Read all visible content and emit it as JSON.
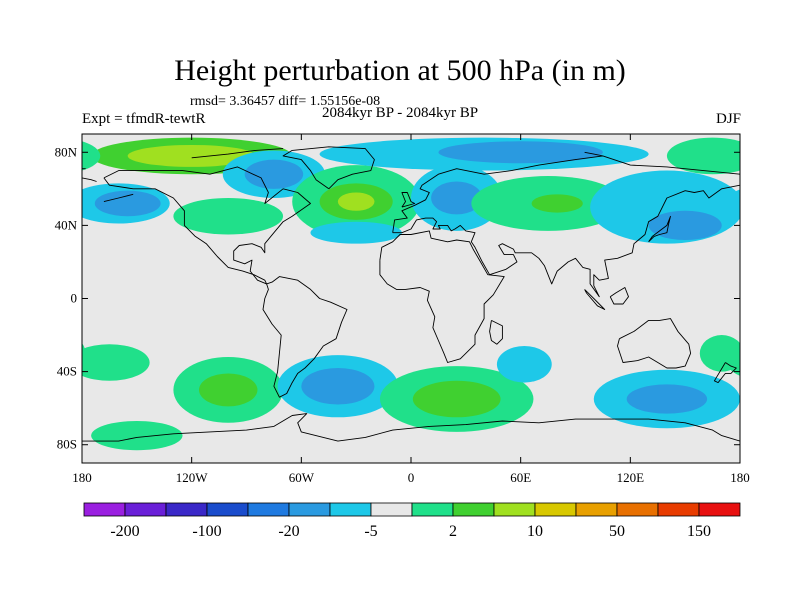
{
  "title": "Height perturbation at 500 hPa (in m)",
  "stats": "rmsd= 3.36457 diff= 1.55156e-08",
  "experiment": "Expt = tfmdR-tewtR",
  "period": "2084kyr BP - 2084kyr BP",
  "season": "DJF",
  "map": {
    "lon_range": [
      -180,
      180
    ],
    "lat_range": [
      -90,
      90
    ],
    "background_color": "#e8e8e8",
    "x_ticks": [
      "180",
      "120W",
      "60W",
      "0",
      "60E",
      "120E",
      "180"
    ],
    "y_ticks": [
      "80N",
      "40N",
      "0",
      "40S",
      "80S"
    ]
  },
  "colorbar": {
    "colors": [
      "#9a1fe0",
      "#6a1fd8",
      "#3a28c8",
      "#1a4ccc",
      "#1f7ae0",
      "#2a9ae0",
      "#1ec8e8",
      "#e8e8e8",
      "#20e08a",
      "#40d030",
      "#a0e020",
      "#d8c800",
      "#e8a000",
      "#e87000",
      "#e83c00",
      "#e81010"
    ],
    "labels": [
      "-200",
      "-100",
      "-20",
      "-5",
      "2",
      "10",
      "50",
      "150"
    ]
  },
  "field_patches": [
    {
      "lon": -120,
      "lat": 78,
      "rlon": 55,
      "rlat": 10,
      "level": 9
    },
    {
      "lon": -120,
      "lat": 78,
      "rlon": 35,
      "rlat": 6,
      "level": 10
    },
    {
      "lon": -75,
      "lat": 68,
      "rlon": 28,
      "rlat": 13,
      "level": 6
    },
    {
      "lon": -75,
      "lat": 68,
      "rlon": 16,
      "rlat": 8,
      "level": 5
    },
    {
      "lon": -160,
      "lat": 52,
      "rlon": 28,
      "rlat": 11,
      "level": 6
    },
    {
      "lon": -155,
      "lat": 52,
      "rlon": 18,
      "rlat": 7,
      "level": 5
    },
    {
      "lon": -100,
      "lat": 45,
      "rlon": 30,
      "rlat": 10,
      "level": 8
    },
    {
      "lon": -30,
      "lat": 53,
      "rlon": 35,
      "rlat": 20,
      "level": 8
    },
    {
      "lon": -30,
      "lat": 53,
      "rlon": 20,
      "rlat": 10,
      "level": 9
    },
    {
      "lon": -30,
      "lat": 53,
      "rlon": 10,
      "rlat": 5,
      "level": 10
    },
    {
      "lon": -30,
      "lat": 36,
      "rlon": 25,
      "rlat": 6,
      "level": 6
    },
    {
      "lon": 40,
      "lat": 79,
      "rlon": 90,
      "rlat": 9,
      "level": 6
    },
    {
      "lon": 60,
      "lat": 80,
      "rlon": 45,
      "rlat": 6,
      "level": 5
    },
    {
      "lon": 25,
      "lat": 55,
      "rlon": 25,
      "rlat": 18,
      "level": 6
    },
    {
      "lon": 25,
      "lat": 55,
      "rlon": 14,
      "rlat": 9,
      "level": 5
    },
    {
      "lon": 75,
      "lat": 52,
      "rlon": 42,
      "rlat": 15,
      "level": 8
    },
    {
      "lon": 80,
      "lat": 52,
      "rlon": 14,
      "rlat": 5,
      "level": 9
    },
    {
      "lon": 140,
      "lat": 50,
      "rlon": 42,
      "rlat": 20,
      "level": 6
    },
    {
      "lon": 150,
      "lat": 40,
      "rlon": 20,
      "rlat": 8,
      "level": 5
    },
    {
      "lon": 165,
      "lat": 78,
      "rlon": 25,
      "rlat": 10,
      "level": 8
    },
    {
      "lon": -165,
      "lat": -35,
      "rlon": 22,
      "rlat": 10,
      "level": 8
    },
    {
      "lon": -100,
      "lat": -50,
      "rlon": 30,
      "rlat": 18,
      "level": 8
    },
    {
      "lon": -100,
      "lat": -50,
      "rlon": 16,
      "rlat": 9,
      "level": 9
    },
    {
      "lon": -40,
      "lat": -48,
      "rlon": 33,
      "rlat": 17,
      "level": 6
    },
    {
      "lon": -40,
      "lat": -48,
      "rlon": 20,
      "rlat": 10,
      "level": 5
    },
    {
      "lon": 25,
      "lat": -55,
      "rlon": 42,
      "rlat": 18,
      "level": 8
    },
    {
      "lon": 25,
      "lat": -55,
      "rlon": 24,
      "rlat": 10,
      "level": 9
    },
    {
      "lon": 62,
      "lat": -36,
      "rlon": 15,
      "rlat": 10,
      "level": 6
    },
    {
      "lon": 140,
      "lat": -55,
      "rlon": 40,
      "rlat": 16,
      "level": 6
    },
    {
      "lon": 140,
      "lat": -55,
      "rlon": 22,
      "rlat": 8,
      "level": 5
    },
    {
      "lon": -150,
      "lat": -75,
      "rlon": 25,
      "rlat": 8,
      "level": 8
    },
    {
      "lon": 170,
      "lat": -30,
      "rlon": 12,
      "rlat": 10,
      "level": 8
    }
  ],
  "coastlines": [
    [
      [
        -168,
        66
      ],
      [
        -160,
        70
      ],
      [
        -140,
        70
      ],
      [
        -125,
        70
      ],
      [
        -110,
        68
      ],
      [
        -95,
        72
      ],
      [
        -82,
        66
      ],
      [
        -78,
        58
      ],
      [
        -80,
        52
      ],
      [
        -70,
        60
      ],
      [
        -62,
        58
      ],
      [
        -55,
        52
      ],
      [
        -65,
        45
      ],
      [
        -70,
        42
      ],
      [
        -75,
        36
      ],
      [
        -80,
        30
      ],
      [
        -80,
        25
      ],
      [
        -82,
        28
      ],
      [
        -87,
        30
      ],
      [
        -94,
        29
      ],
      [
        -97,
        26
      ],
      [
        -97,
        21
      ],
      [
        -91,
        19
      ],
      [
        -87,
        21
      ],
      [
        -88,
        15
      ],
      [
        -84,
        10
      ],
      [
        -79,
        8
      ],
      [
        -80,
        10
      ],
      [
        -86,
        13
      ],
      [
        -92,
        15
      ],
      [
        -100,
        17
      ],
      [
        -106,
        23
      ],
      [
        -112,
        30
      ],
      [
        -115,
        32
      ],
      [
        -118,
        34
      ],
      [
        -124,
        40
      ],
      [
        -124,
        48
      ],
      [
        -130,
        55
      ],
      [
        -140,
        60
      ],
      [
        -152,
        60
      ],
      [
        -165,
        62
      ],
      [
        -168,
        66
      ]
    ],
    [
      [
        -79,
        8
      ],
      [
        -76,
        9
      ],
      [
        -72,
        12
      ],
      [
        -62,
        10
      ],
      [
        -55,
        5
      ],
      [
        -50,
        0
      ],
      [
        -44,
        -2
      ],
      [
        -35,
        -6
      ],
      [
        -38,
        -13
      ],
      [
        -41,
        -22
      ],
      [
        -48,
        -26
      ],
      [
        -53,
        -33
      ],
      [
        -58,
        -38
      ],
      [
        -62,
        -41
      ],
      [
        -65,
        -46
      ],
      [
        -68,
        -52
      ],
      [
        -72,
        -54
      ],
      [
        -75,
        -48
      ],
      [
        -73,
        -40
      ],
      [
        -72,
        -30
      ],
      [
        -71,
        -20
      ],
      [
        -76,
        -14
      ],
      [
        -81,
        -6
      ],
      [
        -80,
        0
      ],
      [
        -78,
        5
      ],
      [
        -79,
        8
      ]
    ],
    [
      [
        -10,
        36
      ],
      [
        -9,
        43
      ],
      [
        -2,
        44
      ],
      [
        -5,
        48
      ],
      [
        2,
        51
      ],
      [
        8,
        54
      ],
      [
        10,
        58
      ],
      [
        5,
        60
      ],
      [
        6,
        62
      ],
      [
        15,
        68
      ],
      [
        25,
        71
      ],
      [
        40,
        68
      ],
      [
        55,
        70
      ],
      [
        70,
        73
      ],
      [
        90,
        76
      ],
      [
        105,
        78
      ],
      [
        120,
        73
      ],
      [
        140,
        72
      ],
      [
        160,
        70
      ],
      [
        180,
        68
      ]
    ],
    [
      [
        -180,
        66
      ],
      [
        -175,
        65
      ],
      [
        -172,
        64
      ]
    ],
    [
      [
        180,
        62
      ],
      [
        170,
        60
      ],
      [
        163,
        55
      ],
      [
        160,
        59
      ],
      [
        155,
        58
      ],
      [
        150,
        59
      ],
      [
        140,
        55
      ],
      [
        135,
        45
      ],
      [
        130,
        42
      ],
      [
        128,
        35
      ],
      [
        122,
        30
      ],
      [
        121,
        25
      ],
      [
        113,
        22
      ],
      [
        106,
        21
      ],
      [
        108,
        11
      ],
      [
        103,
        10
      ],
      [
        100,
        13
      ],
      [
        100,
        7
      ],
      [
        103,
        1
      ],
      [
        98,
        8
      ],
      [
        98,
        16
      ],
      [
        94,
        17
      ],
      [
        90,
        22
      ],
      [
        86,
        20
      ],
      [
        80,
        15
      ],
      [
        77,
        8
      ],
      [
        73,
        18
      ],
      [
        70,
        22
      ],
      [
        66,
        25
      ],
      [
        57,
        25
      ],
      [
        56,
        27
      ],
      [
        50,
        30
      ],
      [
        48,
        29
      ],
      [
        51,
        24
      ],
      [
        56,
        24
      ],
      [
        58,
        20
      ],
      [
        52,
        16
      ],
      [
        43,
        13
      ],
      [
        39,
        20
      ],
      [
        35,
        28
      ],
      [
        33,
        31
      ],
      [
        35,
        36
      ],
      [
        30,
        37
      ],
      [
        27,
        40
      ],
      [
        24,
        38
      ],
      [
        22,
        37
      ],
      [
        20,
        40
      ],
      [
        15,
        40
      ],
      [
        16,
        38
      ],
      [
        12,
        38
      ],
      [
        14,
        42
      ],
      [
        12,
        44
      ],
      [
        8,
        44
      ],
      [
        3,
        43
      ],
      [
        0,
        38
      ],
      [
        -5,
        36
      ],
      [
        -10,
        36
      ]
    ],
    [
      [
        -17,
        21
      ],
      [
        -16,
        28
      ],
      [
        -10,
        31
      ],
      [
        -6,
        35
      ],
      [
        0,
        35
      ],
      [
        10,
        37
      ],
      [
        11,
        33
      ],
      [
        20,
        31
      ],
      [
        25,
        32
      ],
      [
        32,
        31
      ],
      [
        34,
        27
      ],
      [
        38,
        20
      ],
      [
        42,
        13
      ],
      [
        51,
        12
      ],
      [
        45,
        2
      ],
      [
        40,
        -3
      ],
      [
        40,
        -11
      ],
      [
        35,
        -20
      ],
      [
        35,
        -25
      ],
      [
        32,
        -28
      ],
      [
        27,
        -33
      ],
      [
        20,
        -35
      ],
      [
        18,
        -30
      ],
      [
        15,
        -23
      ],
      [
        12,
        -16
      ],
      [
        13,
        -10
      ],
      [
        9,
        -1
      ],
      [
        10,
        4
      ],
      [
        5,
        6
      ],
      [
        -3,
        5
      ],
      [
        -8,
        5
      ],
      [
        -13,
        8
      ],
      [
        -17,
        13
      ],
      [
        -17,
        21
      ]
    ],
    [
      [
        44,
        -12
      ],
      [
        50,
        -15
      ],
      [
        50,
        -22
      ],
      [
        47,
        -25
      ],
      [
        44,
        -23
      ],
      [
        43,
        -18
      ],
      [
        44,
        -12
      ]
    ],
    [
      [
        114,
        -22
      ],
      [
        122,
        -18
      ],
      [
        130,
        -12
      ],
      [
        136,
        -12
      ],
      [
        142,
        -11
      ],
      [
        146,
        -18
      ],
      [
        152,
        -25
      ],
      [
        153,
        -30
      ],
      [
        150,
        -37
      ],
      [
        145,
        -38
      ],
      [
        140,
        -38
      ],
      [
        135,
        -35
      ],
      [
        130,
        -32
      ],
      [
        124,
        -34
      ],
      [
        116,
        -35
      ],
      [
        113,
        -26
      ],
      [
        114,
        -22
      ]
    ],
    [
      [
        -45,
        60
      ],
      [
        -52,
        65
      ],
      [
        -55,
        70
      ],
      [
        -60,
        76
      ],
      [
        -70,
        78
      ],
      [
        -65,
        81
      ],
      [
        -45,
        83
      ],
      [
        -25,
        82
      ],
      [
        -20,
        76
      ],
      [
        -22,
        70
      ],
      [
        -32,
        68
      ],
      [
        -40,
        65
      ],
      [
        -45,
        60
      ]
    ],
    [
      [
        -5,
        50
      ],
      [
        -3,
        53
      ],
      [
        -5,
        58
      ],
      [
        -2,
        58
      ],
      [
        0,
        53
      ],
      [
        2,
        52
      ],
      [
        -5,
        50
      ]
    ],
    [
      [
        130,
        31
      ],
      [
        133,
        34
      ],
      [
        136,
        35
      ],
      [
        140,
        36
      ],
      [
        141,
        41
      ],
      [
        142,
        45
      ],
      [
        140,
        40
      ],
      [
        136,
        37
      ],
      [
        132,
        34
      ],
      [
        130,
        31
      ]
    ],
    [
      [
        95,
        5
      ],
      [
        100,
        0
      ],
      [
        106,
        -6
      ],
      [
        102,
        -4
      ],
      [
        96,
        3
      ],
      [
        95,
        5
      ]
    ],
    [
      [
        109,
        1
      ],
      [
        112,
        3
      ],
      [
        117,
        6
      ],
      [
        119,
        1
      ],
      [
        116,
        -3
      ],
      [
        111,
        -3
      ],
      [
        109,
        1
      ]
    ],
    [
      [
        -180,
        -78
      ],
      [
        -160,
        -78
      ],
      [
        -150,
        -76
      ],
      [
        -130,
        -74
      ],
      [
        -110,
        -73
      ],
      [
        -90,
        -72
      ],
      [
        -75,
        -70
      ],
      [
        -65,
        -64
      ],
      [
        -57,
        -63
      ],
      [
        -62,
        -68
      ],
      [
        -60,
        -73
      ],
      [
        -40,
        -78
      ],
      [
        -25,
        -76
      ],
      [
        -10,
        -72
      ],
      [
        10,
        -70
      ],
      [
        30,
        -69
      ],
      [
        50,
        -67
      ],
      [
        70,
        -68
      ],
      [
        90,
        -66
      ],
      [
        110,
        -66
      ],
      [
        130,
        -66
      ],
      [
        150,
        -68
      ],
      [
        165,
        -72
      ],
      [
        170,
        -75
      ],
      [
        180,
        -78
      ]
    ],
    [
      [
        -168,
        53
      ],
      [
        -160,
        55
      ],
      [
        -152,
        57
      ]
    ],
    [
      [
        172,
        -35
      ],
      [
        175,
        -37
      ],
      [
        178,
        -38
      ],
      [
        175,
        -41
      ],
      [
        172,
        -41
      ],
      [
        168,
        -46
      ],
      [
        166,
        -45
      ],
      [
        172,
        -35
      ]
    ],
    [
      [
        -180,
        71
      ],
      [
        -178,
        71
      ]
    ],
    [
      [
        95,
        80
      ],
      [
        100,
        79
      ],
      [
        105,
        78
      ]
    ],
    [
      [
        -120,
        77
      ],
      [
        -100,
        79
      ],
      [
        -85,
        81
      ],
      [
        -70,
        82
      ]
    ]
  ]
}
